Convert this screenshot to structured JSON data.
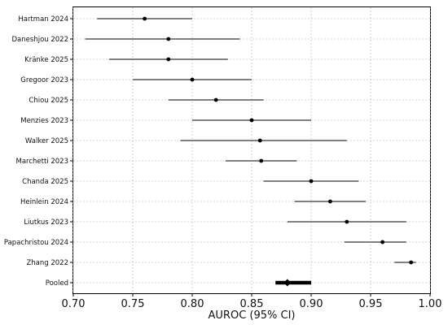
{
  "chart_data": {
    "type": "forest",
    "xlabel": "AUROC (95% CI)",
    "xlim": [
      0.7,
      1.0
    ],
    "xticks": [
      "0.70",
      "0.75",
      "0.80",
      "0.85",
      "0.90",
      "0.95",
      "1.00"
    ],
    "grid": true,
    "studies": [
      {
        "label": "Hartman 2024",
        "estimate": 0.76,
        "lower": 0.72,
        "upper": 0.8
      },
      {
        "label": "Daneshjou 2022",
        "estimate": 0.78,
        "lower": 0.71,
        "upper": 0.84
      },
      {
        "label": "Kränke 2025",
        "estimate": 0.78,
        "lower": 0.73,
        "upper": 0.83
      },
      {
        "label": "Gregoor 2023",
        "estimate": 0.8,
        "lower": 0.75,
        "upper": 0.85
      },
      {
        "label": "Chiou 2025",
        "estimate": 0.82,
        "lower": 0.78,
        "upper": 0.86
      },
      {
        "label": "Menzies 2023",
        "estimate": 0.85,
        "lower": 0.8,
        "upper": 0.9
      },
      {
        "label": "Walker 2025",
        "estimate": 0.857,
        "lower": 0.79,
        "upper": 0.93
      },
      {
        "label": "Marchetti 2023",
        "estimate": 0.858,
        "lower": 0.828,
        "upper": 0.888
      },
      {
        "label": "Chanda 2025",
        "estimate": 0.9,
        "lower": 0.86,
        "upper": 0.94
      },
      {
        "label": "Heinlein 2024",
        "estimate": 0.916,
        "lower": 0.886,
        "upper": 0.946
      },
      {
        "label": "Liutkus 2023",
        "estimate": 0.93,
        "lower": 0.88,
        "upper": 0.98
      },
      {
        "label": "Papachristou 2024",
        "estimate": 0.96,
        "lower": 0.928,
        "upper": 0.98
      },
      {
        "label": "Zhang 2022",
        "estimate": 0.984,
        "lower": 0.97,
        "upper": 0.988
      },
      {
        "label": "Pooled",
        "estimate": 0.88,
        "lower": 0.87,
        "upper": 0.9,
        "pooled": true
      }
    ],
    "colors": {
      "ci": "#808080",
      "point": "#000000",
      "pooled": "#000000",
      "grid": "#c8c8c8"
    }
  }
}
